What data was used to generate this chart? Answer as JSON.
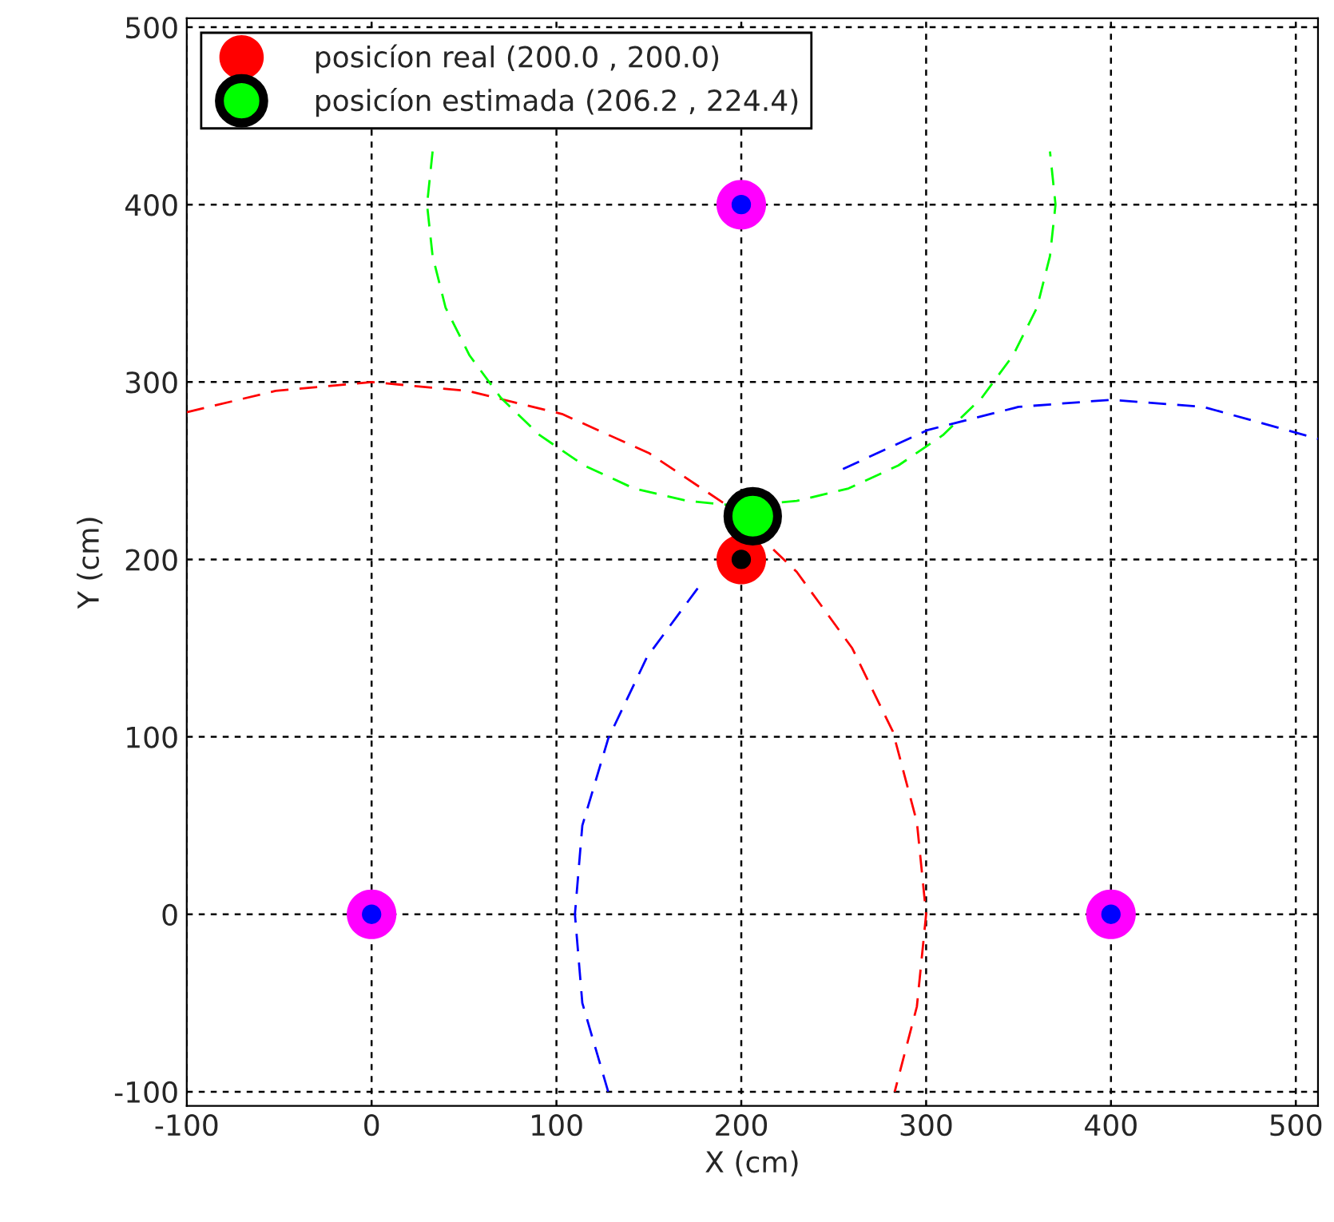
{
  "chart_data": {
    "type": "line",
    "xlabel": "X (cm)",
    "ylabel": "Y (cm)",
    "xlim": [
      -100,
      512
    ],
    "ylim": [
      -108,
      505
    ],
    "xticks": [
      -100,
      0,
      100,
      200,
      300,
      400,
      500
    ],
    "yticks": [
      -100,
      0,
      100,
      200,
      300,
      400,
      500
    ],
    "grid": true,
    "legend": "top left",
    "series": [
      {
        "line_style": "dashed",
        "color": "#ff0000",
        "x": [
          -100,
          -52,
          0,
          52,
          103,
          150,
          193,
          230,
          260,
          282,
          295,
          300,
          295,
          283
        ],
        "values": [
          283,
          295,
          300,
          295,
          282,
          260,
          230,
          193,
          150,
          103,
          52,
          0,
          -52,
          -100
        ]
      },
      {
        "line_style": "dashed",
        "color": "#0000ff",
        "x": [
          128,
          114,
          110,
          114,
          128,
          149,
          178,
          214,
          255,
          301,
          350,
          400,
          450,
          512
        ],
        "values": [
          -100,
          -50,
          0,
          50,
          99,
          145,
          186,
          null,
          251,
          273,
          286,
          290,
          286,
          268
        ]
      },
      {
        "line_style": "dashed",
        "color": "#00ff00",
        "x": [
          33,
          30,
          33,
          40,
          53,
          70,
          91,
          115,
          142,
          171,
          200,
          230,
          258,
          285,
          309,
          330,
          347,
          360,
          367,
          370,
          367
        ],
        "values": [
          430,
          400,
          371,
          342,
          315,
          291,
          270,
          253,
          240,
          233,
          230,
          233,
          240,
          253,
          270,
          291,
          315,
          342,
          371,
          400,
          430
        ]
      },
      {
        "type": "scatter",
        "marker": "circle",
        "color": "#ff00ff",
        "x": [
          0,
          400,
          200
        ],
        "values": [
          0,
          0,
          400
        ]
      },
      {
        "type": "scatter",
        "marker": "circle",
        "name": "posicíon real (200.0 , 200.0)",
        "color": "#ff0000",
        "x": [
          200
        ],
        "values": [
          200
        ]
      },
      {
        "type": "scatter",
        "marker": "circle",
        "name": "posicíon estimada (206.2 , 224.4)",
        "color": "#00ff00",
        "x": [
          206.2
        ],
        "values": [
          224.4
        ]
      }
    ]
  }
}
